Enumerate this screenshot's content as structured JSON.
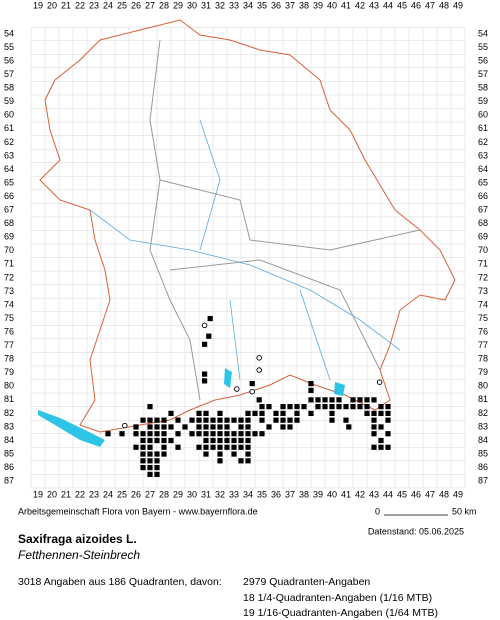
{
  "map": {
    "columns": [
      19,
      20,
      21,
      22,
      23,
      24,
      25,
      26,
      27,
      28,
      29,
      30,
      31,
      32,
      33,
      34,
      35,
      36,
      37,
      38,
      39,
      40,
      41,
      42,
      43,
      44,
      45,
      46,
      47,
      48,
      49
    ],
    "rows": [
      54,
      55,
      56,
      57,
      58,
      59,
      60,
      61,
      62,
      63,
      64,
      65,
      66,
      67,
      68,
      69,
      70,
      71,
      72,
      73,
      74,
      75,
      76,
      77,
      78,
      79,
      80,
      81,
      82,
      83,
      84,
      85,
      86,
      87
    ],
    "squares": [
      {
        "row": 75,
        "cols": [
          31.3
        ]
      },
      {
        "row": 76.3,
        "cols": [
          31.2
        ]
      },
      {
        "row": 76.9,
        "cols": [
          30.9
        ]
      },
      {
        "row": 79.1,
        "cols": [
          30.9
        ]
      },
      {
        "row": 79.6,
        "cols": [
          30.9
        ]
      },
      {
        "row": 79.8,
        "cols": [
          34.3,
          38.5
        ]
      },
      {
        "row": 80.3,
        "cols": [
          38.5
        ]
      },
      {
        "row": 81,
        "cols": [
          34.8,
          38.5,
          39,
          39.5,
          40,
          40.5,
          41.5,
          42,
          42.5,
          43
        ]
      },
      {
        "row": 81.5,
        "cols": [
          27,
          35,
          35.5,
          36.5,
          37,
          37.5,
          38,
          39,
          39.5,
          40,
          40.5,
          41,
          41.5,
          42,
          42.5,
          43.5,
          44
        ]
      },
      {
        "row": 82,
        "cols": [
          28.5,
          30.5,
          31,
          32,
          34,
          34.5,
          35,
          36,
          36.5,
          37.5,
          38.5,
          40,
          42.5,
          43,
          43.5,
          44
        ]
      },
      {
        "row": 82.5,
        "cols": [
          26.5,
          27,
          27.5,
          28,
          29,
          30,
          30.5,
          31,
          31.5,
          32,
          32.5,
          33,
          33.5,
          34,
          35,
          36,
          36.5,
          37,
          37.5,
          40,
          41,
          43,
          44
        ]
      },
      {
        "row": 83,
        "cols": [
          26,
          27,
          27.5,
          28,
          28.5,
          29.5,
          30.5,
          31,
          31.5,
          32,
          32.5,
          33.5,
          34,
          35.5,
          36.5,
          37,
          41.2,
          43,
          43.5
        ]
      },
      {
        "row": 83.5,
        "cols": [
          24,
          25,
          26,
          26.5,
          27,
          27.5,
          28,
          29,
          30,
          30.5,
          31,
          31.5,
          32,
          32.5,
          33,
          33.5,
          34,
          34.5,
          35,
          43,
          44
        ]
      },
      {
        "row": 84,
        "cols": [
          26.5,
          27,
          27.5,
          28,
          28.5,
          31,
          31.5,
          32,
          32.5,
          33,
          33.5,
          34,
          43.5
        ]
      },
      {
        "row": 84.5,
        "cols": [
          26,
          26.5,
          27,
          28,
          29,
          30.5,
          31,
          31.5,
          32,
          32.5,
          33,
          33.5,
          34,
          43,
          43.5,
          44
        ]
      },
      {
        "row": 85,
        "cols": [
          26.5,
          27,
          27.5,
          28,
          31,
          32,
          33,
          34
        ]
      },
      {
        "row": 85.5,
        "cols": [
          26.5,
          27,
          27.5,
          32,
          33.5,
          34
        ]
      },
      {
        "row": 86,
        "cols": [
          26.5,
          27,
          27.5
        ]
      },
      {
        "row": 86.5,
        "cols": [
          27,
          27.5
        ]
      }
    ],
    "circles": [
      {
        "row": 75.5,
        "col": 30.9
      },
      {
        "row": 77.9,
        "col": 34.8
      },
      {
        "row": 78.8,
        "col": 34.8
      },
      {
        "row": 80.4,
        "col": 34.3
      },
      {
        "row": 79.7,
        "col": 43.4
      },
      {
        "row": 82.9,
        "col": 25.2
      },
      {
        "row": 80.2,
        "col": 33.2
      }
    ],
    "credit": "Arbeitsgemeinschaft Flora von Bayern - www.bayernflora.de",
    "scale_start": "0",
    "scale_end": "50 km",
    "date": "Datenstand: 05.06.2025",
    "species": "Saxifraga aizoides L.",
    "common_name": "Fetthennen-Steinbrech",
    "summary": "3018 Angaben aus 186 Quadranten, davon:",
    "breakdown": [
      "2979 Quadranten-Angaben",
      "18 1/4-Quadranten-Angaben (1/16 MTB)",
      "19 1/16-Quadranten-Angaben (1/64 MTB)"
    ]
  }
}
